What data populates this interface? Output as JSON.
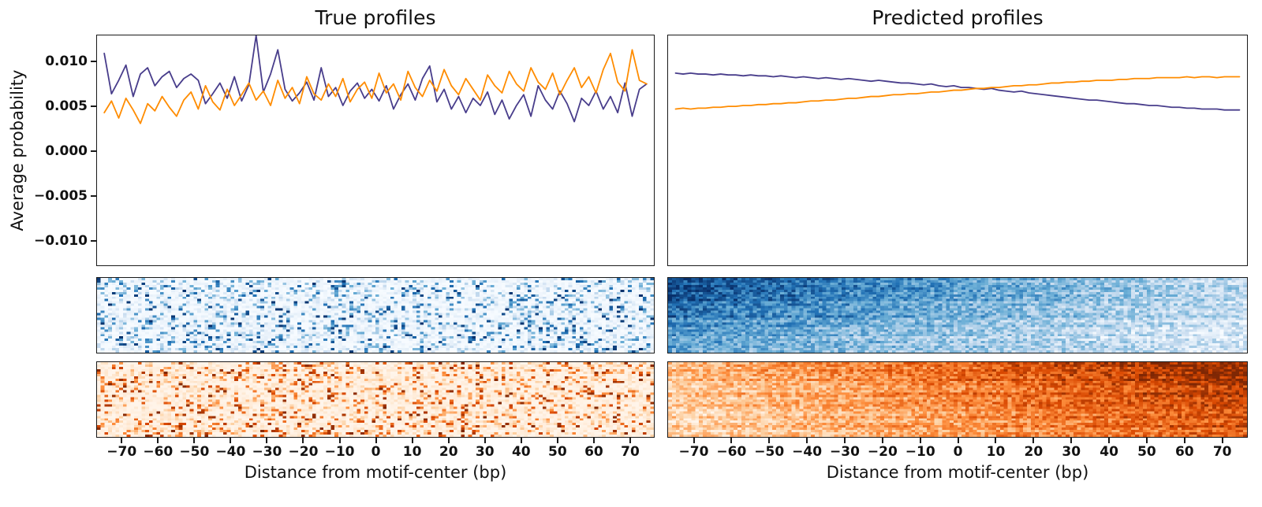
{
  "figure": {
    "background": "#ffffff"
  },
  "chart_data": [
    {
      "type": "line",
      "panel": "true-profiles",
      "title": "True profiles",
      "xlabel": "Distance from motif-center (bp)",
      "ylabel": "Average probability",
      "xlim": [
        -77,
        77
      ],
      "ylim": [
        -0.0128,
        0.0128
      ],
      "x_ticks": [
        -70,
        -60,
        -50,
        -40,
        -30,
        -20,
        -10,
        0,
        10,
        20,
        30,
        40,
        50,
        60,
        70
      ],
      "x_tick_labels": [
        "−70",
        "−60",
        "−50",
        "−40",
        "−30",
        "−20",
        "−10",
        "0",
        "10",
        "20",
        "30",
        "40",
        "50",
        "60",
        "70"
      ],
      "y_ticks": [
        0.01,
        0.005,
        0.0,
        -0.005,
        -0.01
      ],
      "y_tick_labels": [
        "0.010",
        "0.005",
        "0.000",
        "−0.005",
        "−0.010"
      ],
      "x_start": -75,
      "x_step": 2,
      "series": [
        {
          "name": "purple-line",
          "color": "#483D8B",
          "values": [
            0.0108,
            0.0063,
            0.0078,
            0.0095,
            0.006,
            0.0085,
            0.0092,
            0.0072,
            0.0082,
            0.0088,
            0.007,
            0.008,
            0.0085,
            0.0078,
            0.0052,
            0.0063,
            0.0075,
            0.0058,
            0.0082,
            0.0055,
            0.0073,
            0.0128,
            0.0065,
            0.0085,
            0.0112,
            0.0068,
            0.0055,
            0.0064,
            0.0076,
            0.0056,
            0.0092,
            0.006,
            0.007,
            0.005,
            0.0066,
            0.0075,
            0.0058,
            0.0068,
            0.0055,
            0.0072,
            0.0046,
            0.0062,
            0.0074,
            0.0056,
            0.008,
            0.0094,
            0.0054,
            0.0068,
            0.0046,
            0.006,
            0.0042,
            0.0058,
            0.005,
            0.0065,
            0.004,
            0.0056,
            0.0035,
            0.005,
            0.0062,
            0.0038,
            0.0072,
            0.0056,
            0.0046,
            0.0066,
            0.0052,
            0.0032,
            0.0058,
            0.005,
            0.0066,
            0.0046,
            0.006,
            0.0042,
            0.0075,
            0.0038,
            0.0068,
            0.0074
          ]
        },
        {
          "name": "orange-line",
          "color": "#FF8C00",
          "values": [
            0.0042,
            0.0055,
            0.0036,
            0.0058,
            0.0045,
            0.003,
            0.0052,
            0.0044,
            0.006,
            0.0048,
            0.0038,
            0.0056,
            0.0065,
            0.0046,
            0.0072,
            0.0054,
            0.0045,
            0.0068,
            0.005,
            0.0062,
            0.0075,
            0.0056,
            0.0066,
            0.005,
            0.0078,
            0.0058,
            0.007,
            0.0052,
            0.0082,
            0.0063,
            0.0056,
            0.0074,
            0.006,
            0.008,
            0.0054,
            0.0068,
            0.0076,
            0.0058,
            0.0086,
            0.0064,
            0.0074,
            0.0056,
            0.0088,
            0.007,
            0.006,
            0.0078,
            0.0066,
            0.009,
            0.0072,
            0.0062,
            0.008,
            0.0068,
            0.0056,
            0.0084,
            0.0072,
            0.0064,
            0.0088,
            0.0074,
            0.0066,
            0.0092,
            0.0076,
            0.0068,
            0.0086,
            0.0062,
            0.0078,
            0.0092,
            0.007,
            0.0082,
            0.0064,
            0.009,
            0.0108,
            0.0076,
            0.0066,
            0.0112,
            0.0078,
            0.0074
          ]
        }
      ],
      "heatmaps": [
        {
          "name": "true-blue-heatmap",
          "colormap": "Blues",
          "rows": 32,
          "cols": 150,
          "pattern": "sparse",
          "seed": 7,
          "density": 0.32
        },
        {
          "name": "true-orange-heatmap",
          "colormap": "Oranges",
          "rows": 32,
          "cols": 150,
          "pattern": "sparse",
          "seed": 13,
          "density": 0.32
        }
      ]
    },
    {
      "type": "line",
      "panel": "predicted-profiles",
      "title": "Predicted profiles",
      "xlabel": "Distance from motif-center (bp)",
      "xlim": [
        -77,
        77
      ],
      "ylim": [
        -0.0128,
        0.0128
      ],
      "x_ticks": [
        -70,
        -60,
        -50,
        -40,
        -30,
        -20,
        -10,
        0,
        10,
        20,
        30,
        40,
        50,
        60,
        70
      ],
      "x_tick_labels": [
        "−70",
        "−60",
        "−50",
        "−40",
        "−30",
        "−20",
        "−10",
        "0",
        "10",
        "20",
        "30",
        "40",
        "50",
        "60",
        "70"
      ],
      "x_start": -75,
      "x_step": 2,
      "series": [
        {
          "name": "purple-line",
          "color": "#483D8B",
          "values": [
            0.0086,
            0.0085,
            0.0086,
            0.0085,
            0.0085,
            0.0084,
            0.0085,
            0.0084,
            0.0084,
            0.0083,
            0.0084,
            0.0083,
            0.0083,
            0.0082,
            0.0083,
            0.0082,
            0.0081,
            0.0082,
            0.0081,
            0.008,
            0.0081,
            0.008,
            0.0079,
            0.008,
            0.0079,
            0.0078,
            0.0077,
            0.0078,
            0.0077,
            0.0076,
            0.0075,
            0.0075,
            0.0074,
            0.0073,
            0.0074,
            0.0072,
            0.0071,
            0.0072,
            0.007,
            0.007,
            0.0069,
            0.0068,
            0.0069,
            0.0067,
            0.0066,
            0.0065,
            0.0066,
            0.0064,
            0.0063,
            0.0062,
            0.0061,
            0.006,
            0.0059,
            0.0058,
            0.0057,
            0.0056,
            0.0056,
            0.0055,
            0.0054,
            0.0053,
            0.0052,
            0.0052,
            0.0051,
            0.005,
            0.005,
            0.0049,
            0.0048,
            0.0048,
            0.0047,
            0.0047,
            0.0046,
            0.0046,
            0.0046,
            0.0045,
            0.0045,
            0.0045
          ]
        },
        {
          "name": "orange-line",
          "color": "#FF8C00",
          "values": [
            0.0046,
            0.0047,
            0.0046,
            0.0047,
            0.0047,
            0.0048,
            0.0048,
            0.0049,
            0.0049,
            0.005,
            0.005,
            0.0051,
            0.0051,
            0.0052,
            0.0052,
            0.0053,
            0.0053,
            0.0054,
            0.0055,
            0.0055,
            0.0056,
            0.0056,
            0.0057,
            0.0058,
            0.0058,
            0.0059,
            0.006,
            0.006,
            0.0061,
            0.0062,
            0.0062,
            0.0063,
            0.0063,
            0.0064,
            0.0065,
            0.0065,
            0.0066,
            0.0067,
            0.0067,
            0.0068,
            0.0069,
            0.0069,
            0.007,
            0.007,
            0.0071,
            0.0072,
            0.0072,
            0.0073,
            0.0073,
            0.0074,
            0.0075,
            0.0075,
            0.0076,
            0.0076,
            0.0077,
            0.0077,
            0.0078,
            0.0078,
            0.0078,
            0.0079,
            0.0079,
            0.008,
            0.008,
            0.008,
            0.0081,
            0.0081,
            0.0081,
            0.0081,
            0.0082,
            0.0081,
            0.0082,
            0.0082,
            0.0081,
            0.0082,
            0.0082,
            0.0082
          ]
        }
      ],
      "heatmaps": [
        {
          "name": "predicted-blue-heatmap",
          "colormap": "Blues",
          "rows": 32,
          "cols": 150,
          "pattern": "gradient",
          "seed": 21,
          "x_gradient": [
            1.0,
            0.28
          ],
          "row_gradient": [
            0.95,
            0.5
          ],
          "noise": 0.4
        },
        {
          "name": "predicted-orange-heatmap",
          "colormap": "Oranges",
          "rows": 32,
          "cols": 150,
          "pattern": "gradient",
          "seed": 34,
          "x_gradient": [
            0.3,
            1.0
          ],
          "row_gradient": [
            0.95,
            0.68
          ],
          "noise": 0.4
        }
      ]
    }
  ]
}
